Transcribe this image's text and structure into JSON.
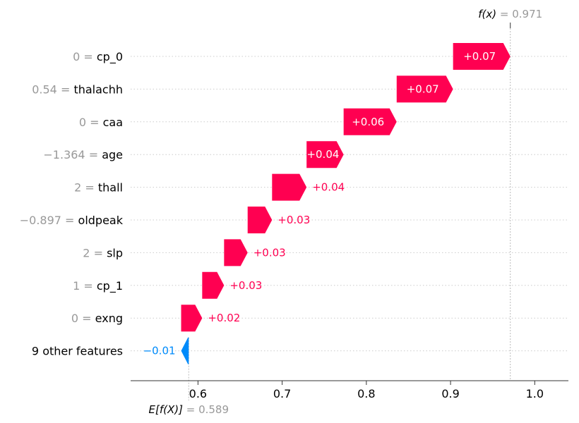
{
  "chart_data": {
    "type": "waterfall",
    "fx": {
      "label": "f(x)",
      "value_text": "= 0.971",
      "value": 0.971
    },
    "base": {
      "label": "E[f(X)]",
      "value_text": "= 0.589",
      "value": 0.589
    },
    "xlim": [
      0.52,
      1.04
    ],
    "xticks": [
      {
        "value": 0.6,
        "label": "0.6"
      },
      {
        "value": 0.7,
        "label": "0.7"
      },
      {
        "value": 0.8,
        "label": "0.8"
      },
      {
        "value": 0.9,
        "label": "0.9"
      },
      {
        "value": 1.0,
        "label": "1.0"
      }
    ],
    "features": [
      {
        "value_text": "0 =",
        "name": "cp_0",
        "start": 0.903,
        "end": 0.971,
        "contrib": "+0.07",
        "sign": "pos",
        "label_inside": true
      },
      {
        "value_text": "0.54 =",
        "name": "thalachh",
        "start": 0.836,
        "end": 0.903,
        "contrib": "+0.07",
        "sign": "pos",
        "label_inside": true
      },
      {
        "value_text": "0 =",
        "name": "caa",
        "start": 0.773,
        "end": 0.836,
        "contrib": "+0.06",
        "sign": "pos",
        "label_inside": true
      },
      {
        "value_text": "−1.364 =",
        "name": "age",
        "start": 0.729,
        "end": 0.773,
        "contrib": "+0.04",
        "sign": "pos",
        "label_inside": true
      },
      {
        "value_text": "2 =",
        "name": "thall",
        "start": 0.688,
        "end": 0.729,
        "contrib": "+0.04",
        "sign": "pos",
        "label_inside": false
      },
      {
        "value_text": "−0.897 =",
        "name": "oldpeak",
        "start": 0.659,
        "end": 0.688,
        "contrib": "+0.03",
        "sign": "pos",
        "label_inside": false
      },
      {
        "value_text": "2 =",
        "name": "slp",
        "start": 0.631,
        "end": 0.659,
        "contrib": "+0.03",
        "sign": "pos",
        "label_inside": false
      },
      {
        "value_text": "1 =",
        "name": "cp_1",
        "start": 0.605,
        "end": 0.631,
        "contrib": "+0.03",
        "sign": "pos",
        "label_inside": false
      },
      {
        "value_text": "0 =",
        "name": "exng",
        "start": 0.58,
        "end": 0.605,
        "contrib": "+0.02",
        "sign": "pos",
        "label_inside": false
      },
      {
        "value_text": "",
        "name": "9 other features",
        "start": 0.589,
        "end": 0.58,
        "contrib": "−0.01",
        "sign": "neg",
        "label_inside": false
      }
    ],
    "colors": {
      "positive": "#ff0051",
      "negative": "#008bfb",
      "value_gray": "#999999",
      "grid": "#cccccc"
    }
  }
}
